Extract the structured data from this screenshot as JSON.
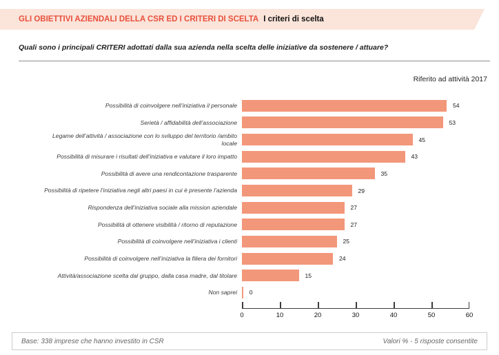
{
  "header": {
    "title_main": "GLI OBIETTIVI AZIENDALI DELLA CSR ED I CRITERI DI SCELTA",
    "title_sub": "I criteri di scelta",
    "band_color": "#fbe4da",
    "title_color": "#e8503c"
  },
  "question": "Quali sono i principali CRITERI adottati dalla sua azienda nella scelta delle iniziative da sostenere / attuare?",
  "note_right": "Riferito ad attività 2017",
  "chart_data": {
    "type": "bar",
    "orientation": "horizontal",
    "categories": [
      "Possibilità di coinvolgere nell’iniziativa il personale",
      "Serietà / affidabilità dell’associazione",
      "Legame dell’attività / associazione con lo sviluppo del territorio /ambito\nlocale",
      "Possibilità di misurare i risultati dell’iniziativa e valutare il loro impatto",
      "Possibilità di avere una rendicontazione trasparente",
      "Possibilità di ripetere l’iniziativa negli altri paesi in cui è presente l’azienda",
      "Rispondenza dell’iniziativa sociale alla mission aziendale",
      "Possibilità di ottenere visibilità / ritorno di reputazione",
      "Possibilità di coinvolgere nell’iniziativa i clienti",
      "Possibilità di coinvolgere nell’iniziativa la filiera dei fornitori",
      "Attività/associazione scelta dal gruppo, dalla casa madre, dal titolare",
      "Non saprei"
    ],
    "values": [
      54,
      53,
      45,
      43,
      35,
      29,
      27,
      27,
      25,
      24,
      15,
      0
    ],
    "bar_color": "#f3977a",
    "value_labels": true,
    "xlim": [
      0,
      60
    ],
    "x_ticks": [
      0,
      10,
      20,
      30,
      40,
      50,
      60
    ],
    "grid": false,
    "legend": null,
    "title": "",
    "xlabel": "",
    "ylabel": ""
  },
  "footer": {
    "left": "Base: 338 imprese che hanno investito in CSR",
    "right": "Valori % - 5 risposte consentite"
  }
}
